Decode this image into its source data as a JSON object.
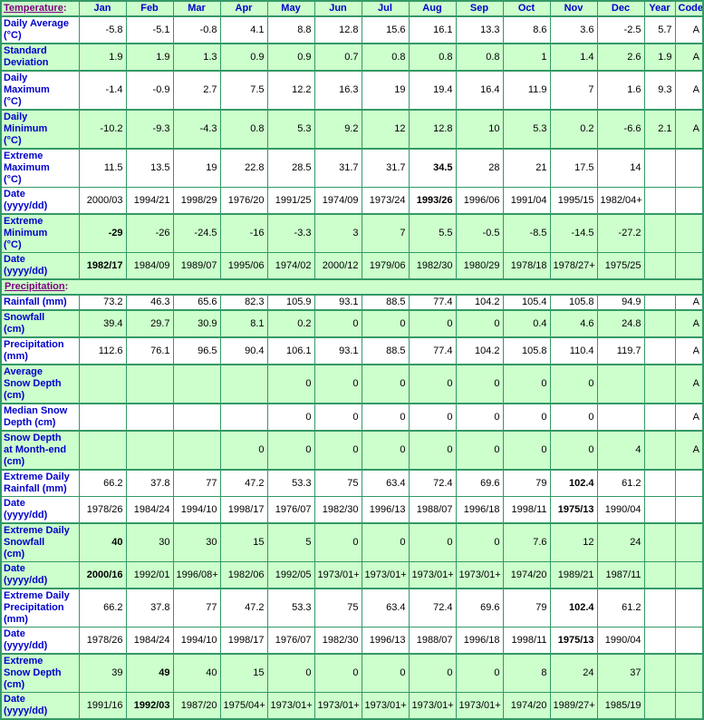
{
  "colors": {
    "row_green": "#CCFFCC",
    "row_white": "#FFFFFF",
    "border_green": "#339966",
    "label_blue": "#0000CC",
    "link_purple": "#800080",
    "value_black": "#000000"
  },
  "chart_data": {
    "type": "table",
    "header": {
      "link": "Temperature",
      "suffix": ":"
    },
    "columns": [
      "Jan",
      "Feb",
      "Mar",
      "Apr",
      "May",
      "Jun",
      "Jul",
      "Aug",
      "Sep",
      "Oct",
      "Nov",
      "Dec",
      "Year",
      "Code"
    ],
    "rows": [
      {
        "label": "Daily Average\n(°C)",
        "shade": "white",
        "thin": false,
        "bold": [],
        "cells": [
          "-5.8",
          "-5.1",
          "-0.8",
          "4.1",
          "8.8",
          "12.8",
          "15.6",
          "16.1",
          "13.3",
          "8.6",
          "3.6",
          "-2.5",
          "5.7",
          "A"
        ]
      },
      {
        "label": "Standard\nDeviation",
        "shade": "green",
        "thin": false,
        "bold": [],
        "cells": [
          "1.9",
          "1.9",
          "1.3",
          "0.9",
          "0.9",
          "0.7",
          "0.8",
          "0.8",
          "0.8",
          "1",
          "1.4",
          "2.6",
          "1.9",
          "A"
        ]
      },
      {
        "label": "Daily\nMaximum\n(°C)",
        "shade": "white",
        "thin": false,
        "bold": [],
        "cells": [
          "-1.4",
          "-0.9",
          "2.7",
          "7.5",
          "12.2",
          "16.3",
          "19",
          "19.4",
          "16.4",
          "11.9",
          "7",
          "1.6",
          "9.3",
          "A"
        ]
      },
      {
        "label": "Daily\nMinimum\n(°C)",
        "shade": "green",
        "thin": false,
        "bold": [],
        "cells": [
          "-10.2",
          "-9.3",
          "-4.3",
          "0.8",
          "5.3",
          "9.2",
          "12",
          "12.8",
          "10",
          "5.3",
          "0.2",
          "-6.6",
          "2.1",
          "A"
        ]
      },
      {
        "label": "Extreme\nMaximum\n(°C)",
        "shade": "white",
        "thin": false,
        "bold": [
          7
        ],
        "cells": [
          "11.5",
          "13.5",
          "19",
          "22.8",
          "28.5",
          "31.7",
          "31.7",
          "34.5",
          "28",
          "21",
          "17.5",
          "14",
          "",
          ""
        ]
      },
      {
        "label": "Date\n(yyyy/dd)",
        "shade": "white",
        "thin": true,
        "bold": [
          7
        ],
        "cells": [
          "2000/03",
          "1994/21",
          "1998/29",
          "1976/20",
          "1991/25",
          "1974/09",
          "1973/24",
          "1993/26",
          "1996/06",
          "1991/04",
          "1995/15",
          "1982/04+",
          "",
          ""
        ]
      },
      {
        "label": "Extreme\nMinimum\n(°C)",
        "shade": "green",
        "thin": false,
        "bold": [
          0
        ],
        "cells": [
          "-29",
          "-26",
          "-24.5",
          "-16",
          "-3.3",
          "3",
          "7",
          "5.5",
          "-0.5",
          "-8.5",
          "-14.5",
          "-27.2",
          "",
          ""
        ]
      },
      {
        "label": "Date\n(yyyy/dd)",
        "shade": "green",
        "thin": true,
        "bold": [
          0
        ],
        "cells": [
          "1982/17",
          "1984/09",
          "1989/07",
          "1995/06",
          "1974/02",
          "2000/12",
          "1979/06",
          "1982/30",
          "1980/29",
          "1978/18",
          "1978/27+",
          "1975/25",
          "",
          ""
        ]
      },
      {
        "section": true,
        "link": "Precipitation",
        "suffix": ":",
        "shade": "green"
      },
      {
        "label": "Rainfall (mm)",
        "shade": "white",
        "thin": false,
        "bold": [],
        "cells": [
          "73.2",
          "46.3",
          "65.6",
          "82.3",
          "105.9",
          "93.1",
          "88.5",
          "77.4",
          "104.2",
          "105.4",
          "105.8",
          "94.9",
          "",
          "A"
        ]
      },
      {
        "label": "Snowfall\n(cm)",
        "shade": "green",
        "thin": false,
        "bold": [],
        "cells": [
          "39.4",
          "29.7",
          "30.9",
          "8.1",
          "0.2",
          "0",
          "0",
          "0",
          "0",
          "0.4",
          "4.6",
          "24.8",
          "",
          "A"
        ]
      },
      {
        "label": "Precipitation\n(mm)",
        "shade": "white",
        "thin": false,
        "bold": [],
        "cells": [
          "112.6",
          "76.1",
          "96.5",
          "90.4",
          "106.1",
          "93.1",
          "88.5",
          "77.4",
          "104.2",
          "105.8",
          "110.4",
          "119.7",
          "",
          "A"
        ]
      },
      {
        "label": "Average\nSnow Depth\n(cm)",
        "shade": "green",
        "thin": false,
        "bold": [],
        "cells": [
          "",
          "",
          "",
          "",
          "0",
          "0",
          "0",
          "0",
          "0",
          "0",
          "0",
          "",
          "",
          "A"
        ]
      },
      {
        "label": "Median Snow\nDepth (cm)",
        "shade": "white",
        "thin": false,
        "bold": [],
        "cells": [
          "",
          "",
          "",
          "",
          "0",
          "0",
          "0",
          "0",
          "0",
          "0",
          "0",
          "",
          "",
          "A"
        ]
      },
      {
        "label": "Snow Depth\nat Month-end\n(cm)",
        "shade": "green",
        "thin": false,
        "bold": [],
        "cells": [
          "",
          "",
          "",
          "0",
          "0",
          "0",
          "0",
          "0",
          "0",
          "0",
          "0",
          "4",
          "",
          "A"
        ]
      },
      {
        "label": "Extreme Daily\nRainfall (mm)",
        "shade": "white",
        "thin": false,
        "bold": [
          10
        ],
        "cells": [
          "66.2",
          "37.8",
          "77",
          "47.2",
          "53.3",
          "75",
          "63.4",
          "72.4",
          "69.6",
          "79",
          "102.4",
          "61.2",
          "",
          ""
        ]
      },
      {
        "label": "Date\n(yyyy/dd)",
        "shade": "white",
        "thin": true,
        "bold": [
          10
        ],
        "cells": [
          "1978/26",
          "1984/24",
          "1994/10",
          "1998/17",
          "1976/07",
          "1982/30",
          "1996/13",
          "1988/07",
          "1996/18",
          "1998/11",
          "1975/13",
          "1990/04",
          "",
          ""
        ]
      },
      {
        "label": "Extreme Daily\nSnowfall\n(cm)",
        "shade": "green",
        "thin": false,
        "bold": [
          0
        ],
        "cells": [
          "40",
          "30",
          "30",
          "15",
          "5",
          "0",
          "0",
          "0",
          "0",
          "7.6",
          "12",
          "24",
          "",
          ""
        ]
      },
      {
        "label": "Date\n(yyyy/dd)",
        "shade": "green",
        "thin": true,
        "bold": [
          0
        ],
        "cells": [
          "2000/16",
          "1992/01",
          "1996/08+",
          "1982/06",
          "1992/05",
          "1973/01+",
          "1973/01+",
          "1973/01+",
          "1973/01+",
          "1974/20",
          "1989/21",
          "1987/11",
          "",
          ""
        ]
      },
      {
        "label": "Extreme Daily\nPrecipitation\n(mm)",
        "shade": "white",
        "thin": false,
        "bold": [
          10
        ],
        "cells": [
          "66.2",
          "37.8",
          "77",
          "47.2",
          "53.3",
          "75",
          "63.4",
          "72.4",
          "69.6",
          "79",
          "102.4",
          "61.2",
          "",
          ""
        ]
      },
      {
        "label": "Date\n(yyyy/dd)",
        "shade": "white",
        "thin": true,
        "bold": [
          10
        ],
        "cells": [
          "1978/26",
          "1984/24",
          "1994/10",
          "1998/17",
          "1976/07",
          "1982/30",
          "1996/13",
          "1988/07",
          "1996/18",
          "1998/11",
          "1975/13",
          "1990/04",
          "",
          ""
        ]
      },
      {
        "label": "Extreme\nSnow Depth\n(cm)",
        "shade": "green",
        "thin": false,
        "bold": [
          1
        ],
        "cells": [
          "39",
          "49",
          "40",
          "15",
          "0",
          "0",
          "0",
          "0",
          "0",
          "8",
          "24",
          "37",
          "",
          ""
        ]
      },
      {
        "label": "Date\n(yyyy/dd)",
        "shade": "green",
        "thin": true,
        "bold": [
          1
        ],
        "cells": [
          "1991/16",
          "1992/03",
          "1987/20",
          "1975/04+",
          "1973/01+",
          "1973/01+",
          "1973/01+",
          "1973/01+",
          "1973/01+",
          "1974/20",
          "1989/27+",
          "1985/19",
          "",
          ""
        ]
      }
    ]
  }
}
